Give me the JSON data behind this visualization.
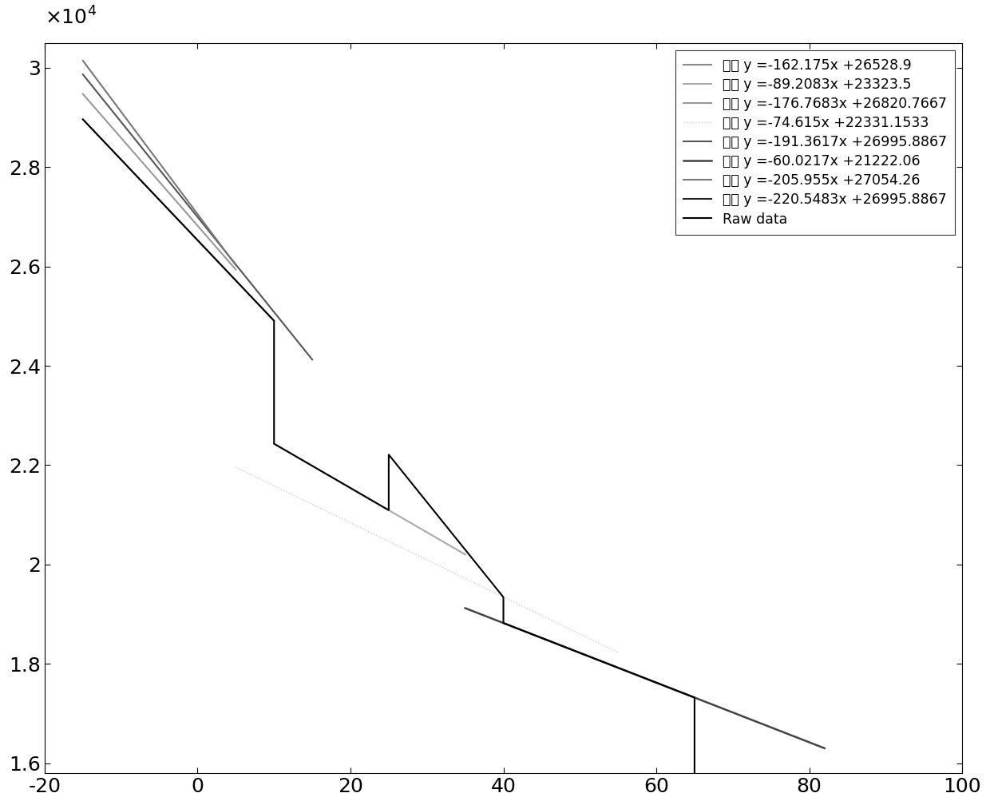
{
  "lines": [
    {
      "slope": -162.175,
      "intercept": 26528.9,
      "label": "回归 y =-162.175x +26528.9",
      "color": "#888888",
      "lw": 1.5,
      "ls": "-",
      "x0": -15,
      "x1": 10
    },
    {
      "slope": -89.2083,
      "intercept": 23323.5,
      "label": "回归 y =-89.2083x +23323.5",
      "color": "#aaaaaa",
      "lw": 1.5,
      "ls": "-",
      "x0": 10,
      "x1": 35
    },
    {
      "slope": -176.7683,
      "intercept": 26820.7667,
      "label": "回归 y =-176.7683x +26820.7667",
      "color": "#999999",
      "lw": 1.5,
      "ls": "-",
      "x0": -15,
      "x1": 5
    },
    {
      "slope": -74.615,
      "intercept": 22331.1533,
      "label": "回归 y =-74.615x +22331.1533",
      "color": "#cccccc",
      "lw": 1.0,
      "ls": ":",
      "x0": 5,
      "x1": 55
    },
    {
      "slope": -191.3617,
      "intercept": 26995.8867,
      "label": "回归 y =-191.3617x +26995.8867",
      "color": "#555555",
      "lw": 1.5,
      "ls": "-",
      "x0": -15,
      "x1": 15
    },
    {
      "slope": -60.0217,
      "intercept": 21222.06,
      "label": "回归 y =-60.0217x +21222.06",
      "color": "#444444",
      "lw": 1.8,
      "ls": "-",
      "x0": 35,
      "x1": 82
    },
    {
      "slope": -205.955,
      "intercept": 27054.26,
      "label": "回归 y =-205.955x +27054.26",
      "color": "#777777",
      "lw": 1.5,
      "ls": "-",
      "x0": -15,
      "x1": 5
    },
    {
      "slope": -220.5483,
      "intercept": 26995.8867,
      "label": "回归 y =-220.5483x +26995.8867",
      "color": "#222222",
      "lw": 1.5,
      "ls": "-",
      "x0": 55,
      "x1": 85
    }
  ],
  "raw_data_label": "Raw data",
  "raw_data_color": "#000000",
  "raw_data_lw": 1.5,
  "xlim": [
    -20,
    100
  ],
  "ylim": [
    15800,
    30500
  ],
  "yticks": [
    16000,
    18000,
    20000,
    22000,
    24000,
    26000,
    28000,
    30000
  ],
  "ytick_labels": [
    "1.6",
    "1.8",
    "2",
    "2.2",
    "2.4",
    "2.6",
    "2.8",
    "3"
  ],
  "xticks": [
    -20,
    0,
    20,
    40,
    60,
    80,
    100
  ],
  "background_color": "#ffffff",
  "figsize": [
    12.4,
    10.08
  ],
  "dpi": 100
}
